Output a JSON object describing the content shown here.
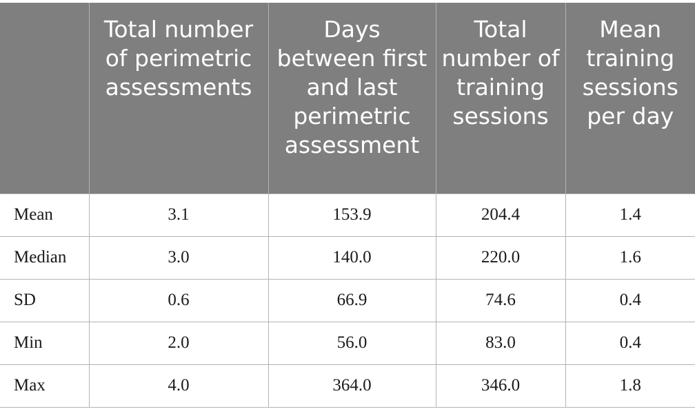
{
  "table": {
    "headers": [
      "",
      "Total number of perimetric assessments",
      "Days between first and last perimetric assessment",
      "Total number of training sessions",
      "Mean training sessions per day"
    ],
    "rows": [
      {
        "label": "Mean",
        "values": [
          "3.1",
          "153.9",
          "204.4",
          "1.4"
        ]
      },
      {
        "label": "Median",
        "values": [
          "3.0",
          "140.0",
          "220.0",
          "1.6"
        ]
      },
      {
        "label": "SD",
        "values": [
          "0.6",
          "66.9",
          "74.6",
          "0.4"
        ]
      },
      {
        "label": "Min",
        "values": [
          "2.0",
          "56.0",
          "83.0",
          "0.4"
        ]
      },
      {
        "label": "Max",
        "values": [
          "4.0",
          "364.0",
          "346.0",
          "1.8"
        ]
      }
    ]
  },
  "colors": {
    "header_background": "#7e7f7e",
    "header_text": "#ffffff",
    "grid_lines": "#b3b3b3"
  }
}
